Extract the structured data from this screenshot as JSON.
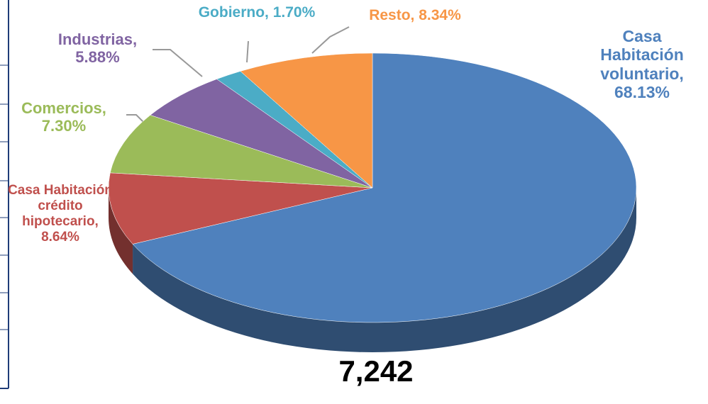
{
  "chart_data": {
    "type": "pie3d",
    "categories": [
      "Casa Habitación voluntario,",
      "Casa Habitación crédito hipotecario,",
      "Comercios,",
      "Industrias,",
      "Gobierno,",
      "Resto,"
    ],
    "values": [
      68.13,
      8.64,
      7.3,
      5.88,
      1.7,
      8.34
    ],
    "value_labels": [
      "68.13%",
      "8.64%",
      "7.30%",
      "5.88%",
      "1.70%",
      "8.34%"
    ],
    "colors": [
      "#4f81bd",
      "#c0504d",
      "#9bbb59",
      "#8064a2",
      "#4bacc6",
      "#f79646"
    ],
    "total": "7,242"
  }
}
